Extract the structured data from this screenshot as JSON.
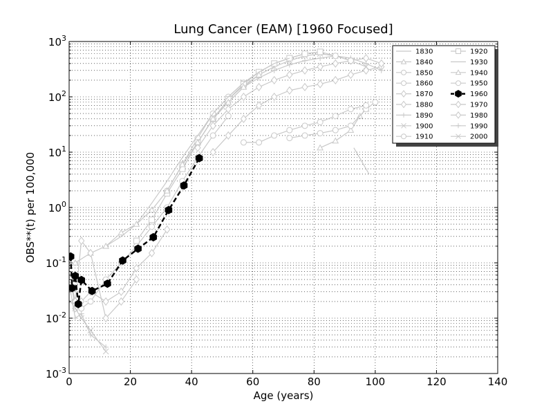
{
  "chart_data": {
    "type": "line",
    "title": "Lung Cancer (EAM) [1960 Focused]",
    "xlabel": "Age (years)",
    "ylabel": "OBS**(t) per 100,000",
    "xlim": [
      0,
      140
    ],
    "ylim": [
      0.001,
      1000
    ],
    "yscale": "log",
    "grid": true,
    "legend_placement": "top-right",
    "x_ticks": [
      "0",
      "20",
      "40",
      "60",
      "80",
      "100",
      "120",
      "140"
    ],
    "y_ticks": [
      {
        "base": "10",
        "exp": "-3"
      },
      {
        "base": "10",
        "exp": "-2"
      },
      {
        "base": "10",
        "exp": "-1"
      },
      {
        "base": "10",
        "exp": "0"
      },
      {
        "base": "10",
        "exp": "1"
      },
      {
        "base": "10",
        "exp": "2"
      },
      {
        "base": "10",
        "exp": "3"
      }
    ],
    "highlight_color": "#000000",
    "background_series_color": "#c8c8c8",
    "series": [
      {
        "name": "1830",
        "marker": "none",
        "x": [
          93,
          98
        ],
        "y": [
          12,
          4
        ]
      },
      {
        "name": "1840",
        "marker": "triangle",
        "x": [
          82,
          87,
          92,
          95,
          97
        ],
        "y": [
          12,
          16,
          25,
          45,
          60
        ]
      },
      {
        "name": "1850",
        "marker": "circle",
        "x": [
          72,
          77,
          82,
          87,
          92,
          97,
          100
        ],
        "y": [
          18,
          20,
          22,
          25,
          30,
          60,
          80
        ]
      },
      {
        "name": "1860",
        "marker": "circle",
        "x": [
          57,
          62,
          67,
          72,
          77,
          82,
          87,
          92,
          97
        ],
        "y": [
          15,
          15,
          20,
          25,
          30,
          35,
          45,
          60,
          70
        ]
      },
      {
        "name": "1870",
        "marker": "diamond",
        "x": [
          47,
          52,
          57,
          62,
          67,
          72,
          77,
          82,
          87,
          92,
          97,
          102
        ],
        "y": [
          10,
          20,
          40,
          70,
          100,
          130,
          150,
          170,
          200,
          250,
          300,
          350
        ]
      },
      {
        "name": "1880",
        "marker": "diamond",
        "x": [
          42,
          47,
          52,
          57,
          62,
          67,
          72,
          77,
          82,
          87,
          92,
          97,
          102
        ],
        "y": [
          12,
          30,
          60,
          100,
          150,
          200,
          250,
          300,
          350,
          400,
          450,
          500,
          400
        ]
      },
      {
        "name": "1890",
        "marker": "plus",
        "x": [
          42,
          47,
          52,
          57,
          62,
          67,
          72,
          77,
          82,
          87,
          92,
          97,
          102
        ],
        "y": [
          15,
          40,
          80,
          150,
          220,
          300,
          380,
          450,
          500,
          550,
          500,
          400,
          300
        ]
      },
      {
        "name": "1900",
        "marker": "x",
        "x": [
          37,
          42,
          47,
          52,
          57,
          62,
          67,
          72,
          77,
          82,
          87,
          92,
          97
        ],
        "y": [
          5,
          15,
          40,
          90,
          160,
          250,
          350,
          450,
          550,
          600,
          550,
          450,
          350
        ]
      },
      {
        "name": "1910",
        "marker": "circle",
        "x": [
          32,
          37,
          42,
          47,
          52,
          57,
          62,
          67,
          72,
          77,
          82,
          87,
          92
        ],
        "y": [
          2,
          6,
          18,
          50,
          100,
          180,
          280,
          400,
          500,
          600,
          650,
          550,
          450
        ]
      },
      {
        "name": "1920",
        "marker": "square",
        "x": [
          22,
          27,
          32,
          37,
          42,
          47,
          52,
          57,
          62,
          67,
          72,
          77,
          82
        ],
        "y": [
          0.25,
          0.6,
          1.8,
          5,
          15,
          40,
          90,
          170,
          280,
          400,
          500,
          600,
          650
        ]
      },
      {
        "name": "1930",
        "marker": "none",
        "x": [
          12,
          17,
          22,
          27,
          32,
          37,
          42,
          47,
          52,
          57,
          62,
          67,
          72
        ],
        "y": [
          0.2,
          0.3,
          0.5,
          1.2,
          3,
          8,
          20,
          50,
          100,
          180,
          280,
          400,
          500
        ]
      },
      {
        "name": "1940",
        "marker": "triangle",
        "x": [
          2,
          7,
          12,
          17,
          22,
          27,
          32,
          37,
          42,
          47,
          52,
          57,
          62
        ],
        "y": [
          0.1,
          0.15,
          0.2,
          0.35,
          0.5,
          0.9,
          2,
          6,
          15,
          40,
          80,
          150,
          250
        ]
      },
      {
        "name": "1950",
        "marker": "circle",
        "x": [
          0.5,
          2,
          4,
          7,
          12,
          17,
          22,
          27,
          32,
          37,
          42,
          47,
          52
        ],
        "y": [
          0.05,
          0.02,
          0.015,
          0.02,
          0.05,
          0.1,
          0.2,
          0.45,
          1,
          3,
          8,
          20,
          45
        ]
      },
      {
        "name": "1960",
        "marker": "hexagon",
        "x": [
          0.5,
          1,
          2,
          3,
          4,
          7.5,
          12.5,
          17.5,
          22.5,
          27.5,
          32.5,
          37.5,
          42.5
        ],
        "y": [
          0.13,
          0.035,
          0.058,
          0.018,
          0.049,
          0.031,
          0.042,
          0.11,
          0.18,
          0.29,
          0.9,
          2.5,
          7.8
        ]
      },
      {
        "name": "1970",
        "marker": "diamond",
        "x": [
          0.5,
          2,
          4,
          7,
          12,
          17,
          22,
          27,
          32
        ],
        "y": [
          0.05,
          0.015,
          0.02,
          0.03,
          0.02,
          0.03,
          0.08,
          0.15,
          0.4
        ]
      },
      {
        "name": "1980",
        "marker": "diamond",
        "x": [
          0.5,
          2,
          4,
          7,
          12,
          17,
          22
        ],
        "y": [
          0.05,
          0.02,
          0.25,
          0.15,
          0.01,
          0.02,
          0.05
        ]
      },
      {
        "name": "1990",
        "marker": "plus",
        "x": [
          0.5,
          2,
          4,
          7,
          12
        ],
        "y": [
          0.03,
          0.01,
          0.012,
          0.005,
          0.003
        ]
      },
      {
        "name": "2000",
        "marker": "x",
        "x": [
          0.5,
          2,
          4,
          7,
          12
        ],
        "y": [
          0.02,
          0.015,
          0.01,
          0.006,
          0.0025
        ]
      }
    ]
  }
}
